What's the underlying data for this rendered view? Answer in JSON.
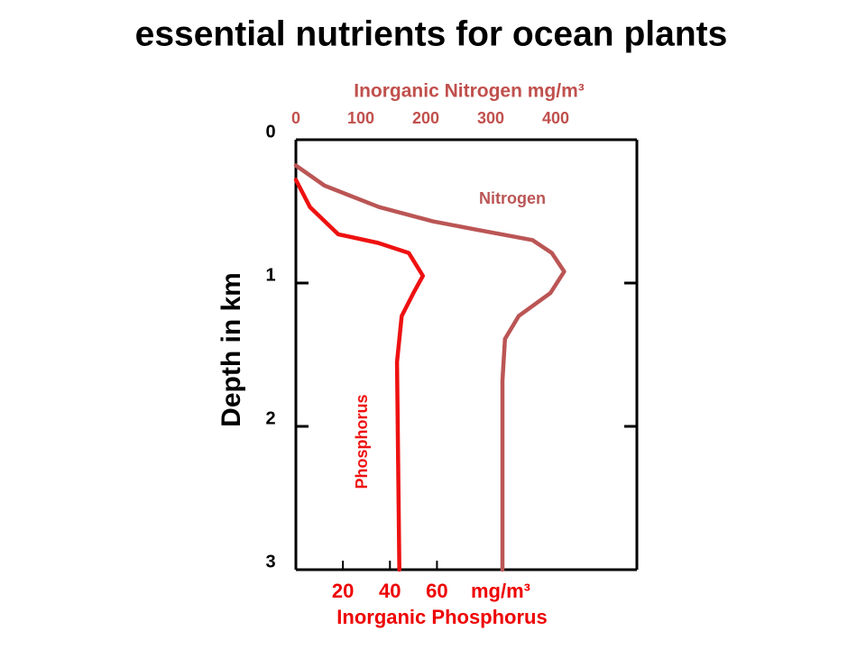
{
  "chart_data": {
    "type": "line",
    "title": "essential nutrients for ocean plants",
    "ylabel": "Depth in km",
    "xlabel": "Inorganic Nitrogen  mg/m³",
    "x2label": "Inorganic Phosphorus",
    "x2unit": "mg/m³",
    "y_inverted": true,
    "ylim": [
      0,
      3
    ],
    "yticks": [
      0,
      1,
      2,
      3
    ],
    "xlim": [
      0,
      525
    ],
    "xticks": [
      0,
      100,
      200,
      300,
      400
    ],
    "x2lim": [
      0,
      145
    ],
    "x2ticks": [
      20,
      40,
      60
    ],
    "xcolor": "#c0504d",
    "x2color": "#ee0000",
    "series": [
      {
        "name": "Nitrogen",
        "color": "#bb5555",
        "axis": "x",
        "x": [
          0,
          44,
          128,
          211,
          281,
          364,
          394,
          413,
          392,
          343,
          322,
          318,
          318
        ],
        "values": [
          0.18,
          0.32,
          0.47,
          0.57,
          0.63,
          0.7,
          0.79,
          0.92,
          1.07,
          1.23,
          1.39,
          1.68,
          3
        ]
      },
      {
        "name": "Phosphorus",
        "color": "#ee1111",
        "axis": "x2",
        "x": [
          0,
          6,
          18,
          35,
          48,
          54,
          50,
          45,
          43,
          44
        ],
        "values": [
          0.28,
          0.47,
          0.66,
          0.72,
          0.79,
          0.95,
          1.07,
          1.23,
          1.55,
          3
        ]
      }
    ]
  }
}
